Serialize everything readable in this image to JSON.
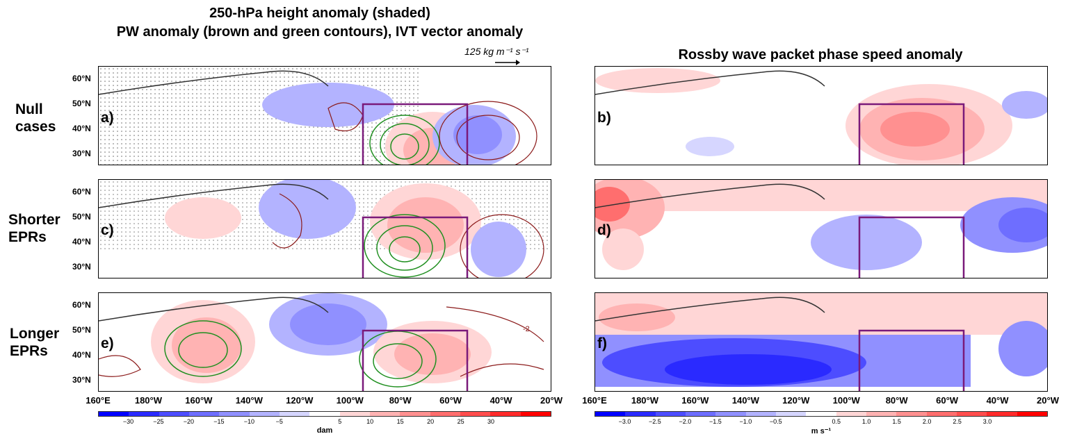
{
  "left_title_line1": "250-hPa height anomaly (shaded)",
  "left_title_line2": "PW anomaly (brown and green contours), IVT vector anomaly",
  "right_title": "Rossby wave packet phase speed anomaly",
  "reference_vector_label": "125 kg m⁻¹ s⁻¹",
  "row_labels": [
    "Null\ncases",
    "Shorter\nEPRs",
    "Longer\nEPRs"
  ],
  "panel_labels": [
    "a)",
    "b)",
    "c)",
    "d)",
    "e)",
    "f)"
  ],
  "lat_labels": [
    "60°N",
    "50°N",
    "40°N",
    "30°N"
  ],
  "lon_labels": [
    "160°E",
    "180°W",
    "160°W",
    "140°W",
    "120°W",
    "100°W",
    "80°W",
    "60°W",
    "40°W",
    "20°W"
  ],
  "contour_label": "-2",
  "colorbar_left": {
    "ticks": [
      "−30",
      "−25",
      "−20",
      "−15",
      "−10",
      "−5",
      "5",
      "10",
      "15",
      "20",
      "25",
      "30"
    ],
    "unit": "dam"
  },
  "colorbar_right": {
    "ticks": [
      "−3.0",
      "−2.5",
      "−2.0",
      "−1.5",
      "−1.0",
      "−0.5",
      "0.5",
      "1.0",
      "1.5",
      "2.0",
      "2.5",
      "3.0"
    ],
    "unit": "m s⁻¹"
  },
  "colors": {
    "scale": [
      "#0000ff",
      "#2a2aff",
      "#4d4dff",
      "#6e6eff",
      "#9090ff",
      "#b3b3ff",
      "#d6d6ff",
      "#ffffff",
      "#ffd6d6",
      "#ffb3b3",
      "#ff9090",
      "#ff6e6e",
      "#ff4d4d",
      "#ff2a2a",
      "#ff0000"
    ],
    "box": "#7a1a7a",
    "pw_positive": "#1f8f1f",
    "pw_negative": "#8b1a1a"
  }
}
